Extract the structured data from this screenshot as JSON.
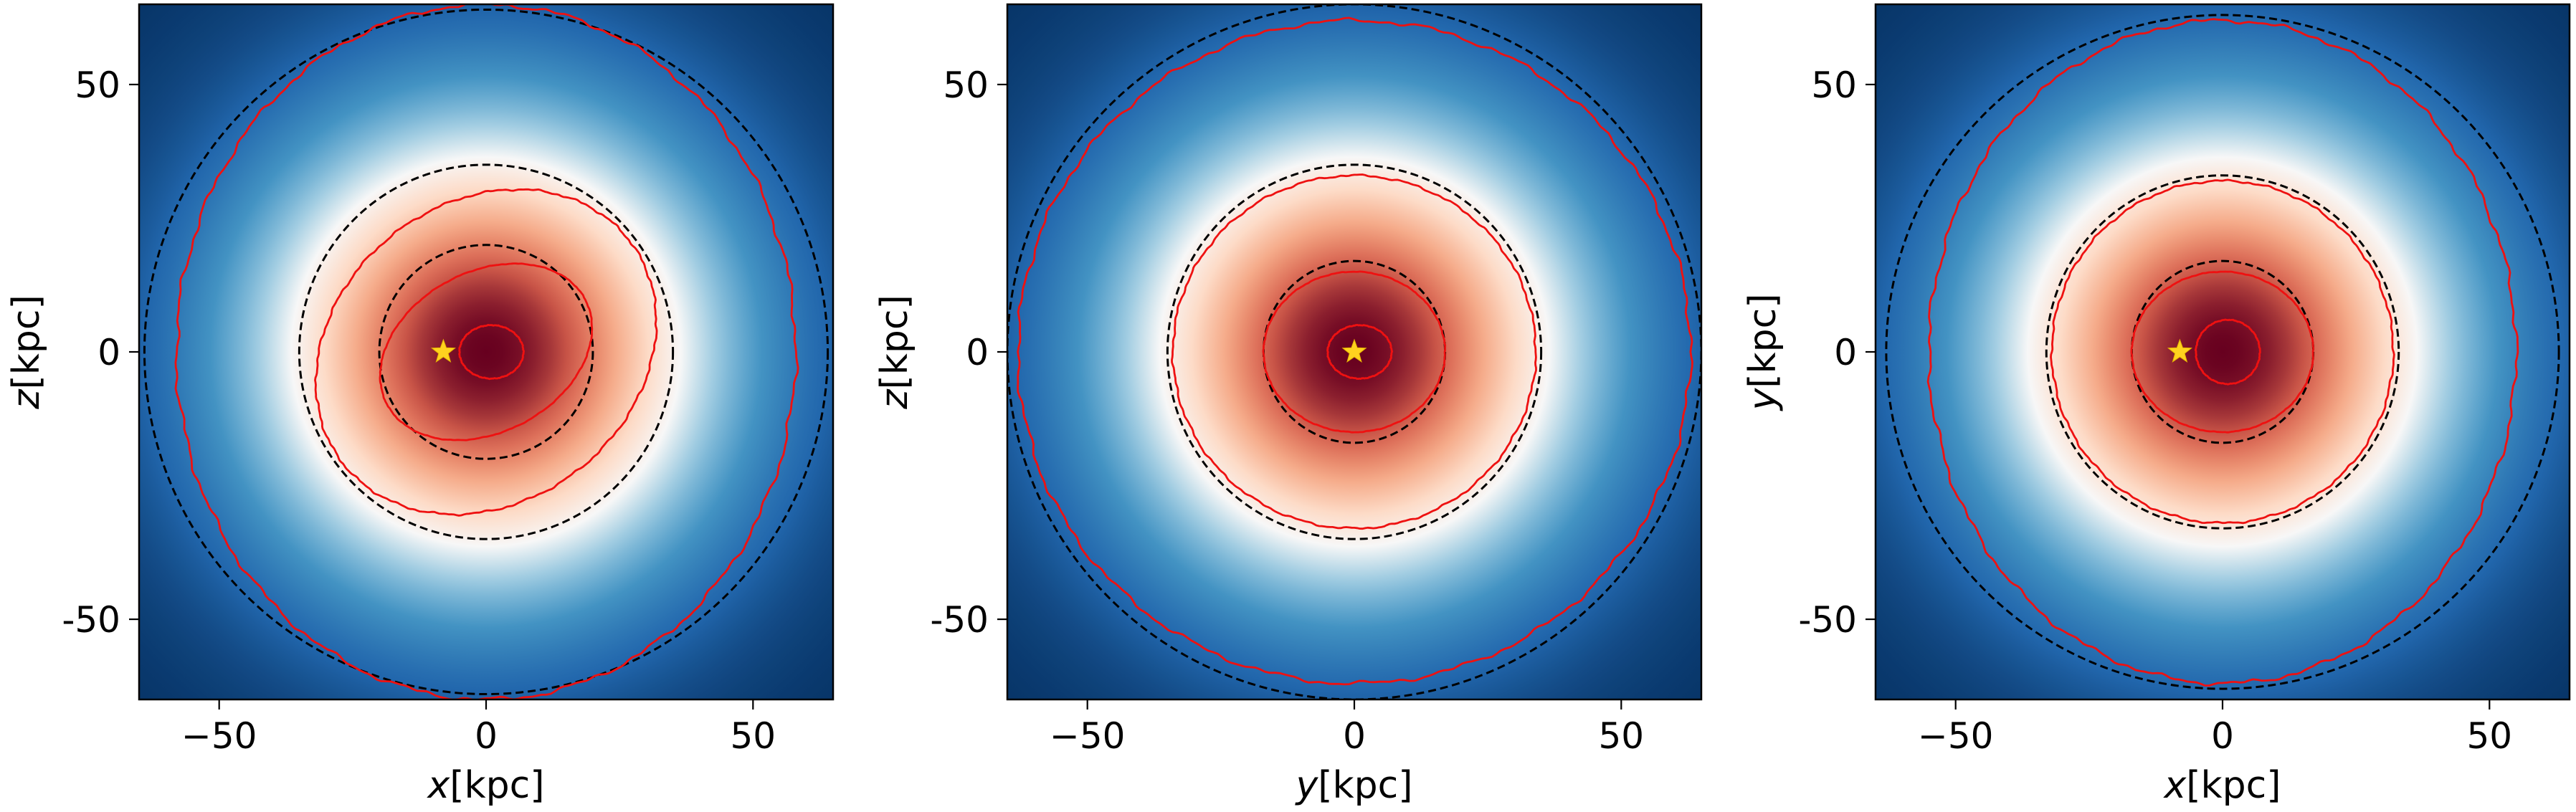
{
  "chart_data": [
    {
      "type": "heatmap",
      "xlabel": {
        "italic": "x",
        "rest": "[kpc]"
      },
      "ylabel": {
        "italic": "z",
        "rest": "[kpc]"
      },
      "xlim": [
        -65,
        65
      ],
      "ylim": [
        -65,
        65
      ],
      "x_ticks": [
        -50,
        0,
        50
      ],
      "y_ticks": [
        50,
        0,
        -50
      ],
      "x_tick_labels": [
        "−50",
        "0",
        "50"
      ],
      "y_tick_labels": [
        "50",
        "0",
        "-50"
      ],
      "colormap": "RdBu_r",
      "density_center": [
        0,
        0
      ],
      "density_scale": 38,
      "dashed_circles_radius": [
        20,
        35,
        64
      ],
      "contour_ellipses": [
        {
          "center": [
            1,
            0
          ],
          "a": 6,
          "b": 5,
          "angle": 0
        },
        {
          "center": [
            0,
            0
          ],
          "a": 21,
          "b": 15,
          "angle": 28
        },
        {
          "center": [
            0,
            0
          ],
          "a": 34,
          "b": 28,
          "angle": 38
        },
        {
          "center": [
            0,
            0
          ],
          "a": 58,
          "b": 65,
          "angle": 0
        }
      ],
      "sun_marker": [
        -8,
        0
      ]
    },
    {
      "type": "heatmap",
      "xlabel": {
        "italic": "y",
        "rest": "[kpc]"
      },
      "ylabel": {
        "italic": "z",
        "rest": "[kpc]"
      },
      "xlim": [
        -65,
        65
      ],
      "ylim": [
        -65,
        65
      ],
      "x_ticks": [
        -50,
        0,
        50
      ],
      "y_ticks": [
        50,
        0,
        -50
      ],
      "x_tick_labels": [
        "−50",
        "0",
        "50"
      ],
      "y_tick_labels": [
        "50",
        "0",
        "-50"
      ],
      "colormap": "RdBu_r",
      "density_center": [
        0,
        0
      ],
      "density_scale": 38,
      "dashed_circles_radius": [
        17,
        35,
        65
      ],
      "contour_ellipses": [
        {
          "center": [
            1,
            0
          ],
          "a": 6,
          "b": 5,
          "angle": 0
        },
        {
          "center": [
            0,
            0
          ],
          "a": 17,
          "b": 15,
          "angle": 0
        },
        {
          "center": [
            0,
            0
          ],
          "a": 34,
          "b": 33,
          "angle": 0
        },
        {
          "center": [
            0,
            0
          ],
          "a": 63,
          "b": 62,
          "angle": 0
        }
      ],
      "sun_marker": [
        0,
        0
      ]
    },
    {
      "type": "heatmap",
      "xlabel": {
        "italic": "x",
        "rest": "[kpc]"
      },
      "ylabel": {
        "italic": "y",
        "rest": "[kpc]"
      },
      "xlim": [
        -65,
        65
      ],
      "ylim": [
        -65,
        65
      ],
      "x_ticks": [
        -50,
        0,
        50
      ],
      "y_ticks": [
        50,
        0,
        -50
      ],
      "x_tick_labels": [
        "−50",
        "0",
        "50"
      ],
      "y_tick_labels": [
        "50",
        "0",
        "-50"
      ],
      "colormap": "RdBu_r",
      "density_center": [
        0,
        0
      ],
      "density_scale": 38,
      "dashed_circles_radius": [
        17,
        33,
        63
      ],
      "contour_ellipses": [
        {
          "center": [
            1,
            0
          ],
          "a": 6,
          "b": 6,
          "angle": 0
        },
        {
          "center": [
            0,
            0
          ],
          "a": 17,
          "b": 15,
          "angle": 0
        },
        {
          "center": [
            0,
            0
          ],
          "a": 32,
          "b": 32,
          "angle": 0
        },
        {
          "center": [
            0,
            0
          ],
          "a": 55,
          "b": 62,
          "angle": 0
        }
      ],
      "sun_marker": [
        -8,
        0
      ]
    }
  ]
}
